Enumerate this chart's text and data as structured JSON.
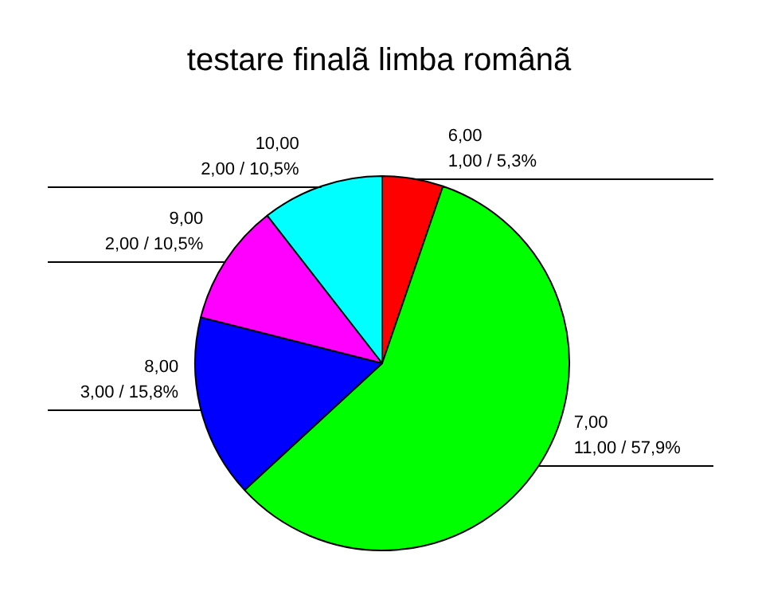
{
  "chart_data": {
    "type": "pie",
    "title": "testare finalã limba românã",
    "categories": [
      "6,00",
      "7,00",
      "8,00",
      "9,00",
      "10,00"
    ],
    "values": [
      1,
      11,
      3,
      2,
      2
    ],
    "colors": [
      "#ff0000",
      "#00ff00",
      "#0000ff",
      "#ff00ff",
      "#00ffff"
    ],
    "value_labels": [
      "1,00 / 5,3%",
      "11,00 / 57,9%",
      "3,00 / 15,8%",
      "2,00 / 10,5%",
      "2,00 / 10,5%"
    ],
    "legend": false
  }
}
